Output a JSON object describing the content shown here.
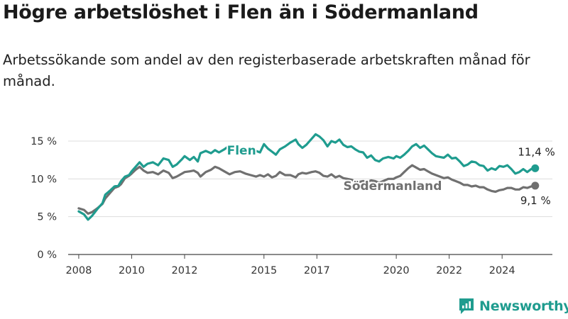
{
  "header": {
    "title": "Högre arbetslöshet i Flen än i Södermanland",
    "subtitle": "Arbetssökande som andel av den registerbaserade arbetskraften månad för månad."
  },
  "brand": {
    "name": "Newsworthy",
    "icon": "newsworthy-logo-icon",
    "color": "#1f9c8f"
  },
  "chart_data": {
    "type": "line",
    "title": "",
    "xlabel": "",
    "ylabel": "",
    "xlim": [
      2007.6,
      2025.9
    ],
    "ylim": [
      0,
      15
    ],
    "grid": true,
    "yticks": [
      {
        "value": 0,
        "label": "0 %"
      },
      {
        "value": 5,
        "label": "5 %"
      },
      {
        "value": 10,
        "label": "10 %"
      },
      {
        "value": 15,
        "label": "15 %"
      }
    ],
    "xticks": [
      {
        "value": 2008,
        "label": "2008"
      },
      {
        "value": 2010,
        "label": "2010"
      },
      {
        "value": 2012,
        "label": "2012"
      },
      {
        "value": 2015,
        "label": "2015"
      },
      {
        "value": 2017,
        "label": "2017"
      },
      {
        "value": 2020,
        "label": "2020"
      },
      {
        "value": 2022,
        "label": "2022"
      },
      {
        "value": 2024,
        "label": "2024"
      }
    ],
    "series": [
      {
        "name": "Flen",
        "color": "#1f9c8f",
        "end_label": "11,4 %",
        "points": [
          [
            2008.0,
            5.7
          ],
          [
            2008.2,
            5.3
          ],
          [
            2008.35,
            4.6
          ],
          [
            2008.5,
            5.1
          ],
          [
            2008.7,
            6.0
          ],
          [
            2008.9,
            6.8
          ],
          [
            2009.0,
            7.9
          ],
          [
            2009.2,
            8.5
          ],
          [
            2009.35,
            9.0
          ],
          [
            2009.5,
            9.1
          ],
          [
            2009.6,
            9.7
          ],
          [
            2009.75,
            10.3
          ],
          [
            2009.9,
            10.5
          ],
          [
            2010.0,
            11.0
          ],
          [
            2010.15,
            11.6
          ],
          [
            2010.3,
            12.2
          ],
          [
            2010.45,
            11.6
          ],
          [
            2010.6,
            12.0
          ],
          [
            2010.8,
            12.2
          ],
          [
            2011.0,
            11.8
          ],
          [
            2011.2,
            12.7
          ],
          [
            2011.4,
            12.5
          ],
          [
            2011.55,
            11.6
          ],
          [
            2011.7,
            11.9
          ],
          [
            2011.9,
            12.6
          ],
          [
            2012.0,
            13.0
          ],
          [
            2012.2,
            12.5
          ],
          [
            2012.35,
            12.9
          ],
          [
            2012.5,
            12.3
          ],
          [
            2012.6,
            13.4
          ],
          [
            2012.8,
            13.7
          ],
          [
            2013.0,
            13.4
          ],
          [
            2013.15,
            13.8
          ],
          [
            2013.3,
            13.5
          ],
          [
            2013.5,
            13.9
          ],
          [
            2013.7,
            14.4
          ],
          [
            2013.9,
            14.0
          ],
          [
            2014.1,
            13.5
          ],
          [
            2014.3,
            13.9
          ],
          [
            2014.5,
            13.6
          ],
          [
            2014.7,
            13.7
          ],
          [
            2014.85,
            13.5
          ],
          [
            2015.0,
            14.6
          ],
          [
            2015.15,
            14.0
          ],
          [
            2015.3,
            13.6
          ],
          [
            2015.45,
            13.2
          ],
          [
            2015.6,
            13.9
          ],
          [
            2015.8,
            14.3
          ],
          [
            2016.0,
            14.8
          ],
          [
            2016.2,
            15.2
          ],
          [
            2016.3,
            14.6
          ],
          [
            2016.45,
            14.1
          ],
          [
            2016.6,
            14.5
          ],
          [
            2016.8,
            15.3
          ],
          [
            2016.95,
            15.9
          ],
          [
            2017.1,
            15.6
          ],
          [
            2017.25,
            15.1
          ],
          [
            2017.4,
            14.3
          ],
          [
            2017.55,
            15.0
          ],
          [
            2017.7,
            14.8
          ],
          [
            2017.85,
            15.2
          ],
          [
            2018.0,
            14.5
          ],
          [
            2018.15,
            14.2
          ],
          [
            2018.3,
            14.3
          ],
          [
            2018.45,
            13.9
          ],
          [
            2018.6,
            13.6
          ],
          [
            2018.75,
            13.5
          ],
          [
            2018.9,
            12.8
          ],
          [
            2019.05,
            13.1
          ],
          [
            2019.2,
            12.5
          ],
          [
            2019.35,
            12.3
          ],
          [
            2019.5,
            12.7
          ],
          [
            2019.7,
            12.9
          ],
          [
            2019.9,
            12.7
          ],
          [
            2020.0,
            13.0
          ],
          [
            2020.15,
            12.8
          ],
          [
            2020.3,
            13.2
          ],
          [
            2020.45,
            13.7
          ],
          [
            2020.6,
            14.3
          ],
          [
            2020.75,
            14.6
          ],
          [
            2020.9,
            14.1
          ],
          [
            2021.05,
            14.4
          ],
          [
            2021.2,
            13.9
          ],
          [
            2021.35,
            13.4
          ],
          [
            2021.5,
            13.0
          ],
          [
            2021.65,
            12.9
          ],
          [
            2021.8,
            12.8
          ],
          [
            2021.95,
            13.2
          ],
          [
            2022.1,
            12.7
          ],
          [
            2022.25,
            12.8
          ],
          [
            2022.4,
            12.3
          ],
          [
            2022.55,
            11.7
          ],
          [
            2022.7,
            11.9
          ],
          [
            2022.85,
            12.3
          ],
          [
            2023.0,
            12.2
          ],
          [
            2023.15,
            11.8
          ],
          [
            2023.3,
            11.7
          ],
          [
            2023.45,
            11.1
          ],
          [
            2023.6,
            11.4
          ],
          [
            2023.75,
            11.2
          ],
          [
            2023.9,
            11.7
          ],
          [
            2024.05,
            11.6
          ],
          [
            2024.2,
            11.8
          ],
          [
            2024.35,
            11.3
          ],
          [
            2024.5,
            10.7
          ],
          [
            2024.65,
            10.9
          ],
          [
            2024.8,
            11.3
          ],
          [
            2024.95,
            10.9
          ],
          [
            2025.1,
            11.3
          ],
          [
            2025.25,
            11.4
          ]
        ]
      },
      {
        "name": "Södermanland",
        "color": "#707070",
        "end_label": "9,1 %",
        "points": [
          [
            2008.0,
            6.1
          ],
          [
            2008.2,
            5.9
          ],
          [
            2008.35,
            5.4
          ],
          [
            2008.5,
            5.6
          ],
          [
            2008.7,
            6.1
          ],
          [
            2008.9,
            6.7
          ],
          [
            2009.0,
            7.4
          ],
          [
            2009.2,
            8.2
          ],
          [
            2009.35,
            8.8
          ],
          [
            2009.5,
            9.0
          ],
          [
            2009.6,
            9.3
          ],
          [
            2009.75,
            10.1
          ],
          [
            2009.9,
            10.4
          ],
          [
            2010.0,
            10.7
          ],
          [
            2010.15,
            11.2
          ],
          [
            2010.3,
            11.6
          ],
          [
            2010.45,
            11.1
          ],
          [
            2010.6,
            10.8
          ],
          [
            2010.8,
            10.9
          ],
          [
            2011.0,
            10.6
          ],
          [
            2011.2,
            11.1
          ],
          [
            2011.4,
            10.8
          ],
          [
            2011.55,
            10.1
          ],
          [
            2011.7,
            10.3
          ],
          [
            2011.9,
            10.7
          ],
          [
            2012.0,
            10.9
          ],
          [
            2012.2,
            11.0
          ],
          [
            2012.35,
            11.1
          ],
          [
            2012.5,
            10.8
          ],
          [
            2012.6,
            10.3
          ],
          [
            2012.8,
            10.9
          ],
          [
            2013.0,
            11.2
          ],
          [
            2013.15,
            11.6
          ],
          [
            2013.3,
            11.4
          ],
          [
            2013.5,
            11.0
          ],
          [
            2013.7,
            10.6
          ],
          [
            2013.9,
            10.9
          ],
          [
            2014.1,
            11.0
          ],
          [
            2014.3,
            10.7
          ],
          [
            2014.5,
            10.5
          ],
          [
            2014.7,
            10.3
          ],
          [
            2014.85,
            10.5
          ],
          [
            2015.0,
            10.3
          ],
          [
            2015.15,
            10.6
          ],
          [
            2015.3,
            10.2
          ],
          [
            2015.45,
            10.4
          ],
          [
            2015.6,
            10.9
          ],
          [
            2015.8,
            10.5
          ],
          [
            2016.0,
            10.5
          ],
          [
            2016.2,
            10.2
          ],
          [
            2016.3,
            10.6
          ],
          [
            2016.45,
            10.8
          ],
          [
            2016.6,
            10.7
          ],
          [
            2016.8,
            10.9
          ],
          [
            2016.95,
            11.0
          ],
          [
            2017.1,
            10.8
          ],
          [
            2017.25,
            10.4
          ],
          [
            2017.4,
            10.3
          ],
          [
            2017.55,
            10.6
          ],
          [
            2017.7,
            10.2
          ],
          [
            2017.85,
            10.4
          ],
          [
            2018.0,
            10.1
          ],
          [
            2018.15,
            10.0
          ],
          [
            2018.3,
            9.9
          ],
          [
            2018.45,
            9.7
          ],
          [
            2018.6,
            9.6
          ],
          [
            2018.75,
            9.7
          ],
          [
            2018.9,
            9.6
          ],
          [
            2019.05,
            9.8
          ],
          [
            2019.2,
            9.7
          ],
          [
            2019.35,
            9.5
          ],
          [
            2019.5,
            9.7
          ],
          [
            2019.7,
            10.0
          ],
          [
            2019.9,
            10.0
          ],
          [
            2020.0,
            10.2
          ],
          [
            2020.15,
            10.4
          ],
          [
            2020.3,
            10.9
          ],
          [
            2020.45,
            11.4
          ],
          [
            2020.6,
            11.8
          ],
          [
            2020.75,
            11.5
          ],
          [
            2020.9,
            11.2
          ],
          [
            2021.05,
            11.3
          ],
          [
            2021.2,
            11.0
          ],
          [
            2021.35,
            10.7
          ],
          [
            2021.5,
            10.5
          ],
          [
            2021.65,
            10.3
          ],
          [
            2021.8,
            10.1
          ],
          [
            2021.95,
            10.2
          ],
          [
            2022.1,
            9.9
          ],
          [
            2022.25,
            9.7
          ],
          [
            2022.4,
            9.5
          ],
          [
            2022.55,
            9.2
          ],
          [
            2022.7,
            9.2
          ],
          [
            2022.85,
            9.0
          ],
          [
            2023.0,
            9.1
          ],
          [
            2023.15,
            8.9
          ],
          [
            2023.3,
            8.9
          ],
          [
            2023.45,
            8.6
          ],
          [
            2023.6,
            8.4
          ],
          [
            2023.75,
            8.3
          ],
          [
            2023.9,
            8.5
          ],
          [
            2024.05,
            8.6
          ],
          [
            2024.2,
            8.8
          ],
          [
            2024.35,
            8.8
          ],
          [
            2024.5,
            8.6
          ],
          [
            2024.65,
            8.6
          ],
          [
            2024.8,
            8.9
          ],
          [
            2024.95,
            8.8
          ],
          [
            2025.1,
            9.0
          ],
          [
            2025.25,
            9.1
          ]
        ]
      }
    ]
  }
}
